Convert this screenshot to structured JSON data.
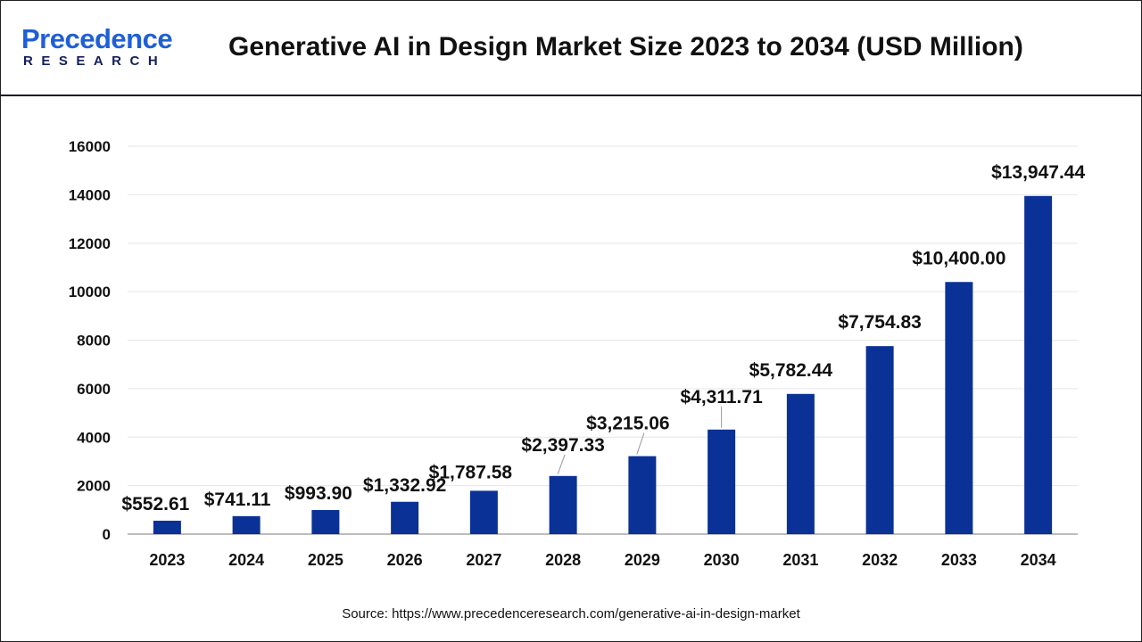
{
  "header": {
    "logo_text": "Precedence",
    "logo_subtext": "RESEARCH",
    "title": "Generative AI in Design Market Size 2023 to 2034 (USD Million)"
  },
  "chart_data": {
    "type": "bar",
    "title": "Generative AI in Design Market Size 2023 to 2034 (USD Million)",
    "categories": [
      "2023",
      "2024",
      "2025",
      "2026",
      "2027",
      "2028",
      "2029",
      "2030",
      "2031",
      "2032",
      "2033",
      "2034"
    ],
    "values": [
      552.61,
      741.11,
      993.9,
      1332.92,
      1787.58,
      2397.33,
      3215.06,
      4311.71,
      5782.44,
      7754.83,
      10400.0,
      13947.44
    ],
    "data_labels": [
      "$552.61",
      "$741.11",
      "$993.90",
      "$1,332.92",
      "$1,787.58",
      "$2,397.33",
      "$3,215.06",
      "$4,311.71",
      "$5,782.44",
      "$7,754.83",
      "$10,400.00",
      "$13,947.44"
    ],
    "yticks": [
      "0",
      "2000",
      "4000",
      "6000",
      "8000",
      "10000",
      "12000",
      "14000",
      "16000"
    ],
    "ylim": [
      0,
      16000
    ],
    "xlabel": "",
    "ylabel": "",
    "grid": true,
    "bar_color": "#0a3196"
  },
  "source": "Source: https://www.precedenceresearch.com/generative-ai-in-design-market"
}
